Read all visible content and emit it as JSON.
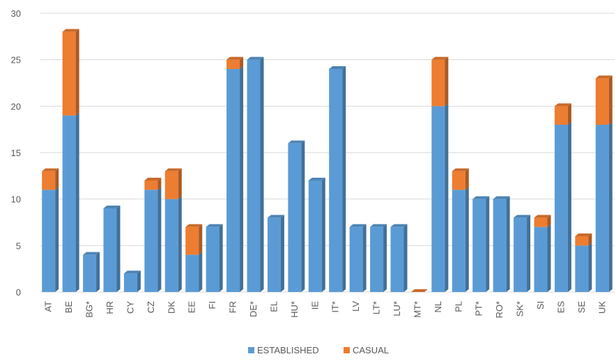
{
  "chart_data": {
    "type": "bar",
    "stacked": true,
    "style": "3d-column",
    "categories": [
      "AT",
      "BE",
      "BG*",
      "HR",
      "CY",
      "CZ",
      "DK",
      "EE",
      "FI",
      "FR",
      "DE*",
      "EL",
      "HU*",
      "IE",
      "IT*",
      "LV",
      "LT*",
      "LU*",
      "MT*",
      "NL",
      "PL",
      "PT*",
      "RO*",
      "SK*",
      "SI",
      "ES",
      "SE",
      "UK"
    ],
    "series": [
      {
        "name": "ESTABLISHED",
        "color": "#5b9bd5",
        "values": [
          11,
          19,
          4,
          9,
          2,
          11,
          10,
          4,
          7,
          24,
          25,
          8,
          16,
          12,
          24,
          7,
          7,
          7,
          0,
          20,
          11,
          10,
          10,
          8,
          7,
          18,
          5,
          18
        ]
      },
      {
        "name": "CASUAL",
        "color": "#ed7d31",
        "values": [
          2,
          9,
          0,
          0,
          0,
          1,
          3,
          3,
          0,
          1,
          0,
          0,
          0,
          0,
          0,
          0,
          0,
          0,
          0,
          5,
          2,
          0,
          0,
          0,
          1,
          2,
          1,
          5
        ]
      }
    ],
    "ylim": [
      0,
      30
    ],
    "yticks": [
      "0",
      "5",
      "10",
      "15",
      "20",
      "25",
      "30"
    ],
    "grid": true,
    "legend": "bottom"
  }
}
